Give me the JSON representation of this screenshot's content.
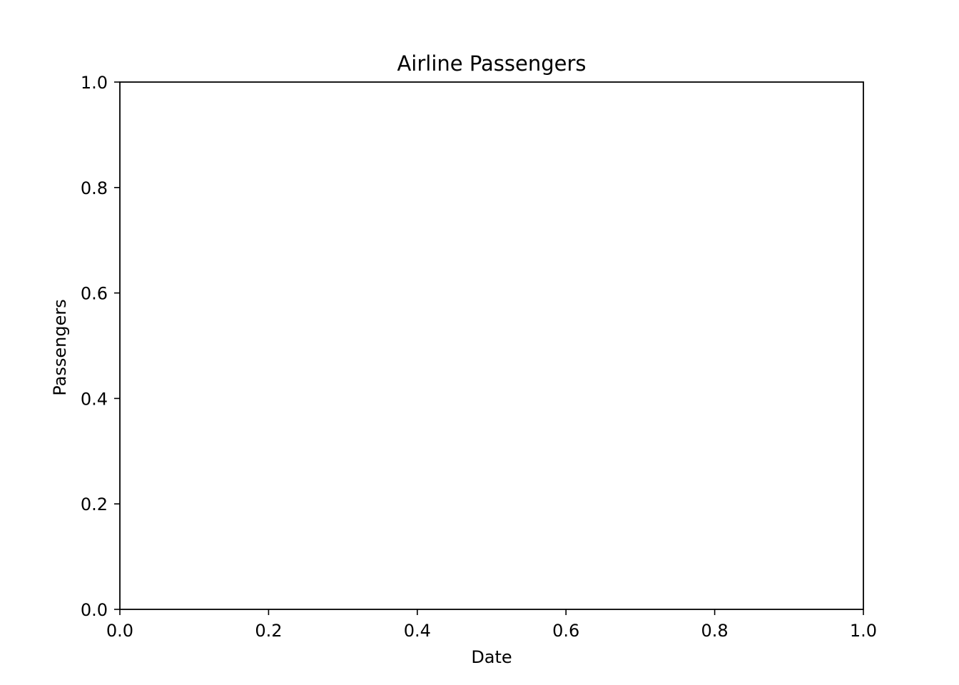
{
  "chart_data": {
    "type": "line",
    "title": "Airline Passengers",
    "xlabel": "Date",
    "ylabel": "Passengers",
    "xlim": [
      0.0,
      1.0
    ],
    "ylim": [
      0.0,
      1.0
    ],
    "xticks": [
      "0.0",
      "0.2",
      "0.4",
      "0.6",
      "0.8",
      "1.0"
    ],
    "yticks": [
      "0.0",
      "0.2",
      "0.4",
      "0.6",
      "0.8",
      "1.0"
    ],
    "grid": false,
    "series": []
  }
}
